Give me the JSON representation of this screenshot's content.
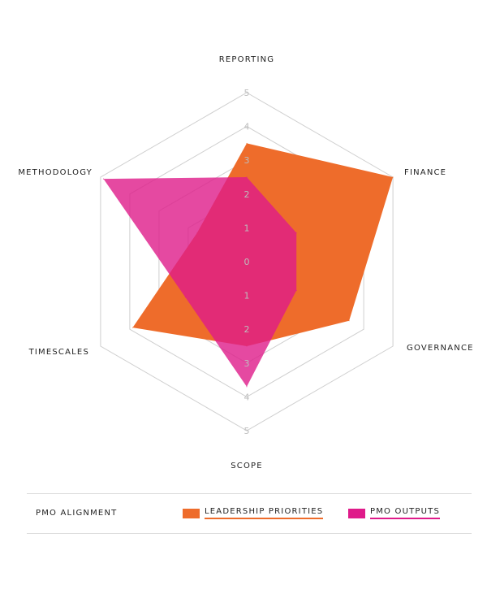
{
  "chart_data": {
    "type": "radar",
    "axes": [
      "REPORTING",
      "FINANCE",
      "GOVERNANCE",
      "SCOPE",
      "TIMESCALES",
      "METHODOLOGY"
    ],
    "ticks": [
      "0",
      "1",
      "2",
      "3",
      "4",
      "5"
    ],
    "rlim": [
      0,
      5
    ],
    "grid": true,
    "legend_position": "bottom",
    "legend_title": "PMO ALIGNMENT",
    "series": [
      {
        "name": "LEADERSHIP PRIORITIES",
        "color": "#ee6c2b",
        "opacity": 1.0,
        "values": [
          3.5,
          5,
          3.5,
          2.5,
          3.9,
          1.7
        ]
      },
      {
        "name": "PMO OUTPUTS",
        "color": "#df1b8a",
        "opacity": 0.8,
        "values": [
          2.5,
          1.7,
          1.7,
          3.7,
          2.1,
          4.9
        ]
      }
    ]
  }
}
